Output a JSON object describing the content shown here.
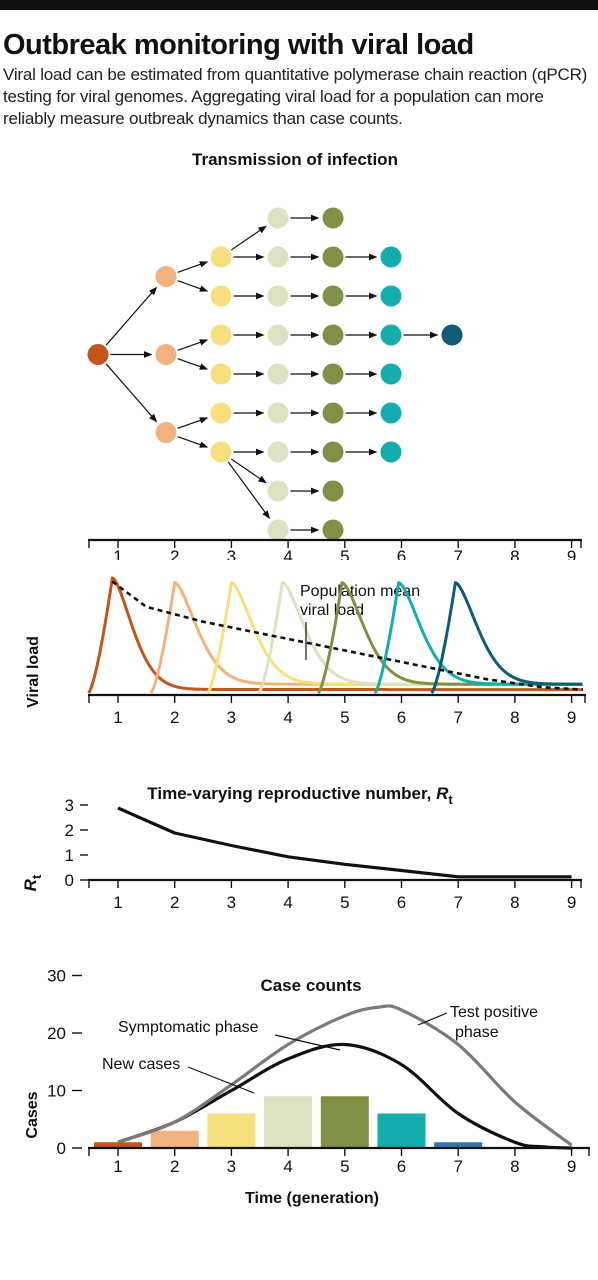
{
  "header": {
    "title": "Outbreak monitoring with viral load",
    "subtitle": "Viral load can be estimated from quantitative polymerase chain reaction (qPCR) testing for viral genomes. Aggregating viral load for a population can more reliably measure outbreak dynamics than case counts."
  },
  "colors": {
    "gen1": "#c2571b",
    "gen2": "#f2b27e",
    "gen3": "#f6df7c",
    "gen4": "#dbe3c2",
    "gen5": "#7f9146",
    "gen6": "#14adae",
    "gen7": "#0f5b78",
    "axis": "#111111",
    "bar7": "#2f77b4"
  },
  "generation_ticks": [
    "1",
    "2",
    "3",
    "4",
    "5",
    "6",
    "7",
    "8",
    "9"
  ],
  "chart_data": [
    {
      "type": "diagram",
      "title": "Transmission of infection",
      "generations": [
        {
          "generation": 1,
          "nodes": 1
        },
        {
          "generation": 2,
          "nodes": 3
        },
        {
          "generation": 3,
          "nodes": 6
        },
        {
          "generation": 4,
          "nodes": 9
        },
        {
          "generation": 5,
          "nodes": 9
        },
        {
          "generation": 6,
          "nodes": 6
        },
        {
          "generation": 7,
          "nodes": 1
        }
      ]
    },
    {
      "type": "line",
      "title": "",
      "ylabel": "Viral load",
      "annotation": "Population mean viral load",
      "x_ticks": [
        1,
        2,
        3,
        4,
        5,
        6,
        7,
        8,
        9
      ],
      "xlim": [
        0.5,
        9.2
      ],
      "ylim": [
        0,
        1
      ],
      "series": [
        {
          "generation": 1,
          "peak_x": 0.9
        },
        {
          "generation": 2,
          "peak_x": 2.0
        },
        {
          "generation": 3,
          "peak_x": 3.0
        },
        {
          "generation": 4,
          "peak_x": 3.9
        },
        {
          "generation": 5,
          "peak_x": 4.95
        },
        {
          "generation": 6,
          "peak_x": 5.95
        },
        {
          "generation": 7,
          "peak_x": 6.95
        }
      ],
      "mean_series": {
        "x": [
          0.9,
          1.5,
          2.5,
          3.5,
          4.5,
          5.5,
          6.5,
          7.5,
          8.5,
          9.2
        ],
        "y": [
          0.97,
          0.75,
          0.62,
          0.52,
          0.42,
          0.32,
          0.22,
          0.12,
          0.05,
          0.03
        ]
      }
    },
    {
      "type": "line",
      "title": "Time-varying reproductive number, ",
      "title_symbol": "R",
      "title_subscript": "t",
      "ylabel": "R",
      "ylabel_subscript": "t",
      "x": [
        1,
        2,
        3,
        4,
        5,
        6,
        7,
        8,
        9
      ],
      "y": [
        2.8,
        1.8,
        1.3,
        0.85,
        0.55,
        0.3,
        0.05,
        0.05,
        0.05
      ],
      "y_ticks": [
        "0",
        "1",
        "2",
        "3"
      ],
      "ylim": [
        0,
        3
      ],
      "xlim": [
        0.5,
        9.2
      ]
    },
    {
      "type": "bar",
      "title": "Case counts",
      "xlabel": "Time (generation)",
      "ylabel": "Cases",
      "categories": [
        "1",
        "2",
        "3",
        "4",
        "5",
        "6",
        "7"
      ],
      "values": [
        1,
        3,
        6,
        9,
        9,
        6,
        1
      ],
      "y_ticks": [
        "0",
        "10",
        "20",
        "30"
      ],
      "ylim": [
        0,
        30
      ],
      "xlim": [
        0.5,
        9.2
      ],
      "series": [
        {
          "name": "Symptomatic phase",
          "x": [
            1,
            2,
            3,
            4,
            5,
            6,
            7,
            8,
            8.5,
            9
          ],
          "y": [
            1,
            4.5,
            10,
            15.5,
            18,
            14.5,
            6,
            1,
            0.2,
            0
          ]
        },
        {
          "name": "Test positive phase",
          "x": [
            1,
            2,
            3,
            4,
            5,
            5.6,
            6,
            7,
            8,
            9
          ],
          "y": [
            1,
            4.5,
            11,
            18,
            23,
            24.5,
            24,
            18,
            8,
            0.5
          ]
        }
      ],
      "labels": {
        "symptomatic": "Symptomatic phase",
        "test_positive_1": "Test positive",
        "test_positive_2": "phase",
        "new_cases": "New cases"
      }
    }
  ]
}
